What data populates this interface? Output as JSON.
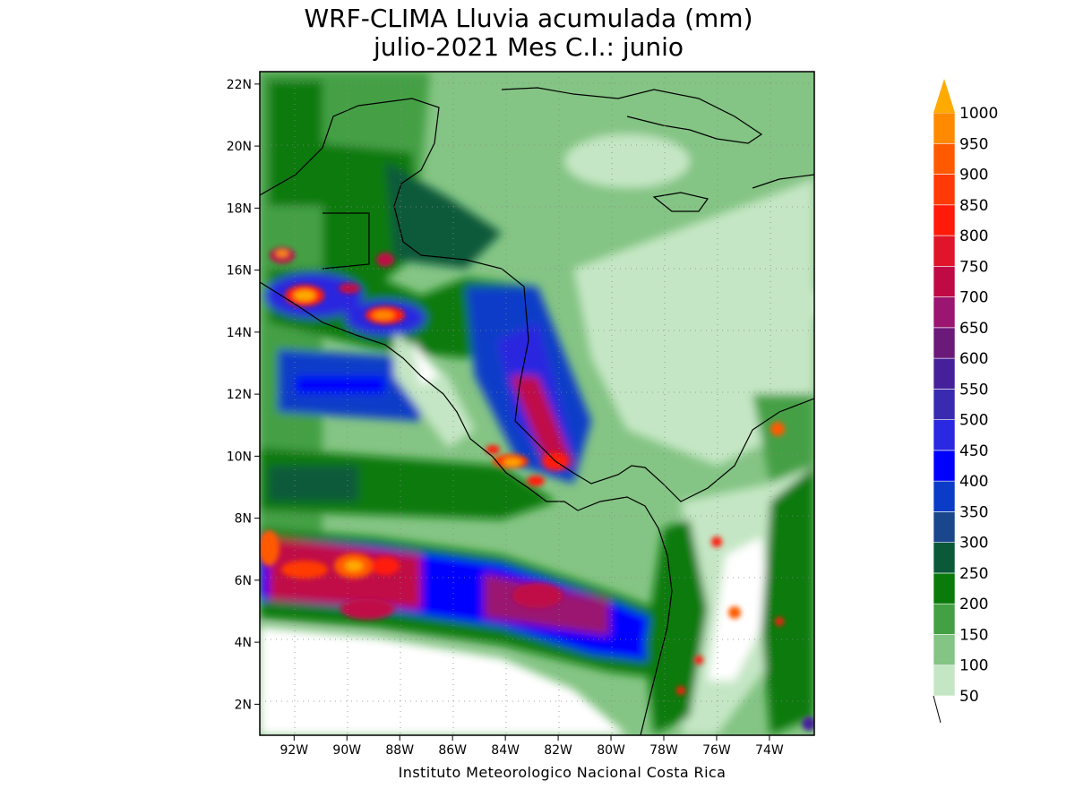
{
  "title_line1": "WRF-CLIMA Lluvia acumulada (mm)",
  "title_line2": "julio-2021 Mes C.I.: junio",
  "credit": "Instituto Meteorologico Nacional Costa Rica",
  "map": {
    "lon_range": [
      -93.3,
      -72.3
    ],
    "lat_range": [
      1.0,
      22.4
    ],
    "lat_ticks": [
      {
        "value": 2,
        "label": "2N"
      },
      {
        "value": 4,
        "label": "4N"
      },
      {
        "value": 6,
        "label": "6N"
      },
      {
        "value": 8,
        "label": "8N"
      },
      {
        "value": 10,
        "label": "10N"
      },
      {
        "value": 12,
        "label": "12N"
      },
      {
        "value": 14,
        "label": "14N"
      },
      {
        "value": 16,
        "label": "16N"
      },
      {
        "value": 18,
        "label": "18N"
      },
      {
        "value": 20,
        "label": "20N"
      },
      {
        "value": 22,
        "label": "22N"
      }
    ],
    "lon_ticks": [
      {
        "value": -92,
        "label": "92W"
      },
      {
        "value": -90,
        "label": "90W"
      },
      {
        "value": -88,
        "label": "88W"
      },
      {
        "value": -86,
        "label": "86W"
      },
      {
        "value": -84,
        "label": "84W"
      },
      {
        "value": -82,
        "label": "82W"
      },
      {
        "value": -80,
        "label": "80W"
      },
      {
        "value": -78,
        "label": "78W"
      },
      {
        "value": -76,
        "label": "76W"
      },
      {
        "value": -74,
        "label": "74W"
      }
    ],
    "grid": "dotted",
    "coastline_color": "#000000"
  },
  "colorbar": {
    "levels": [
      "50",
      "100",
      "150",
      "200",
      "250",
      "300",
      "350",
      "400",
      "450",
      "500",
      "550",
      "600",
      "650",
      "700",
      "750",
      "800",
      "850",
      "900",
      "950",
      "1000"
    ],
    "colors": [
      "#c4e6c4",
      "#84c484",
      "#44a044",
      "#0a7a0a",
      "#0a5a3a",
      "#1a468c",
      "#0a3cc8",
      "#0000ff",
      "#2a28e0",
      "#3a2ab0",
      "#46209a",
      "#6c1a7a",
      "#9a1670",
      "#c00a46",
      "#e0142a",
      "#ff1a0a",
      "#ff3a06",
      "#ff5a00",
      "#ff8a00"
    ],
    "extend_color": "#ffaa00",
    "extend": "max"
  }
}
